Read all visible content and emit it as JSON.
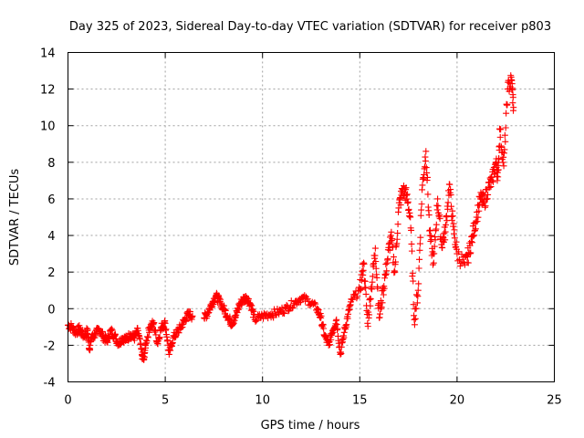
{
  "chart_data": {
    "type": "scatter",
    "title": "Day 325 of 2023, Sidereal Day-to-day VTEC variation (SDTVAR) for receiver p803",
    "xlabel": "GPS time / hours",
    "ylabel": "SDTVAR / TECUs",
    "xlim": [
      0,
      25
    ],
    "ylim": [
      -4,
      14
    ],
    "xticks": [
      "0",
      "5",
      "10",
      "15",
      "20",
      "25"
    ],
    "yticks": [
      "-4",
      "-2",
      "0",
      "2",
      "4",
      "6",
      "8",
      "10",
      "12",
      "14"
    ],
    "grid": true,
    "marker": "+",
    "color": "#ff0000",
    "series": [
      {
        "name": "p803",
        "x": [
          0.0,
          0.2,
          0.4,
          0.6,
          0.8,
          1.0,
          1.1,
          1.2,
          1.4,
          1.6,
          1.8,
          2.0,
          2.2,
          2.4,
          2.6,
          2.8,
          3.0,
          3.2,
          3.4,
          3.6,
          3.8,
          3.9,
          4.0,
          4.2,
          4.4,
          4.6,
          4.8,
          5.0,
          5.2,
          5.4,
          5.6,
          5.8,
          6.0,
          6.2,
          6.4,
          7.0,
          7.2,
          7.4,
          7.6,
          7.8,
          8.0,
          8.2,
          8.4,
          8.6,
          8.8,
          9.0,
          9.2,
          9.4,
          9.6,
          10.0,
          10.4,
          10.8,
          11.2,
          11.6,
          12.0,
          12.4,
          12.8,
          13.0,
          13.2,
          13.4,
          13.6,
          13.8,
          14.0,
          14.2,
          14.4,
          14.6,
          15.0,
          15.2,
          15.4,
          15.6,
          15.8,
          16.0,
          16.2,
          16.4,
          16.6,
          16.8,
          17.0,
          17.2,
          17.4,
          17.6,
          17.8,
          18.0,
          18.2,
          18.4,
          18.6,
          18.8,
          19.0,
          19.2,
          19.4,
          19.6,
          19.8,
          20.0,
          20.4,
          20.6,
          20.8,
          21.0,
          21.2,
          21.4,
          21.6,
          21.8,
          22.0,
          22.1,
          22.2,
          22.4,
          22.6,
          22.8,
          22.9
        ],
        "y": [
          -0.9,
          -1.0,
          -1.3,
          -1.1,
          -1.5,
          -1.2,
          -2.2,
          -1.6,
          -1.4,
          -1.1,
          -1.5,
          -1.8,
          -1.2,
          -1.5,
          -1.9,
          -1.6,
          -1.7,
          -1.4,
          -1.6,
          -1.2,
          -2.5,
          -2.8,
          -1.9,
          -1.0,
          -0.8,
          -1.9,
          -1.0,
          -0.8,
          -2.5,
          -1.6,
          -1.3,
          -1.0,
          -0.6,
          -0.3,
          -0.4,
          -0.5,
          -0.2,
          0.3,
          0.7,
          0.4,
          0.0,
          -0.4,
          -0.8,
          -0.5,
          0.2,
          0.5,
          0.6,
          0.2,
          -0.6,
          -0.4,
          -0.3,
          -0.2,
          0.0,
          0.3,
          0.6,
          0.4,
          0.0,
          -0.5,
          -1.5,
          -2.0,
          -1.2,
          -0.6,
          -2.5,
          -1.3,
          -0.3,
          0.5,
          1.0,
          2.5,
          -0.8,
          1.2,
          3.3,
          -0.5,
          1.0,
          2.5,
          4.0,
          2.0,
          5.5,
          6.5,
          6.2,
          5.0,
          -0.6,
          1.0,
          6.5,
          8.6,
          4.0,
          2.5,
          6.0,
          3.5,
          4.2,
          6.8,
          4.5,
          3.0,
          2.4,
          3.0,
          4.0,
          5.0,
          6.0,
          5.8,
          6.6,
          7.0,
          8.0,
          7.2,
          9.8,
          7.8,
          12.0,
          12.5,
          11.0
        ]
      }
    ]
  }
}
